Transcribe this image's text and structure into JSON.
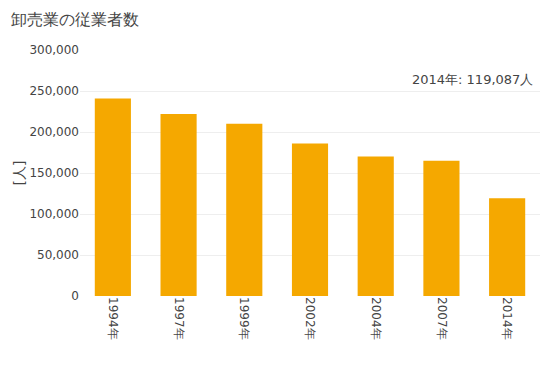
{
  "chart_data": {
    "type": "bar",
    "title": "卸売業の従業者数",
    "ylabel": "[人]",
    "categories": [
      "1994年",
      "1997年",
      "1999年",
      "2002年",
      "2004年",
      "2007年",
      "2014年"
    ],
    "values": [
      241000,
      222000,
      210000,
      186000,
      170000,
      165000,
      119087
    ],
    "color": "#F5A800",
    "ylim": [
      0,
      300000
    ],
    "yticks": [
      0,
      {
        "value": 50000,
        "label": "50,000"
      },
      {
        "value": 100000,
        "label": "100,000"
      },
      {
        "value": 150000,
        "label": "150,000"
      },
      {
        "value": 200000,
        "label": "200,000"
      },
      {
        "value": 250000,
        "label": "250,000"
      },
      {
        "value": 300000,
        "label": "300,000"
      }
    ],
    "annotation": "2014年: 119,087人",
    "grid": true
  }
}
